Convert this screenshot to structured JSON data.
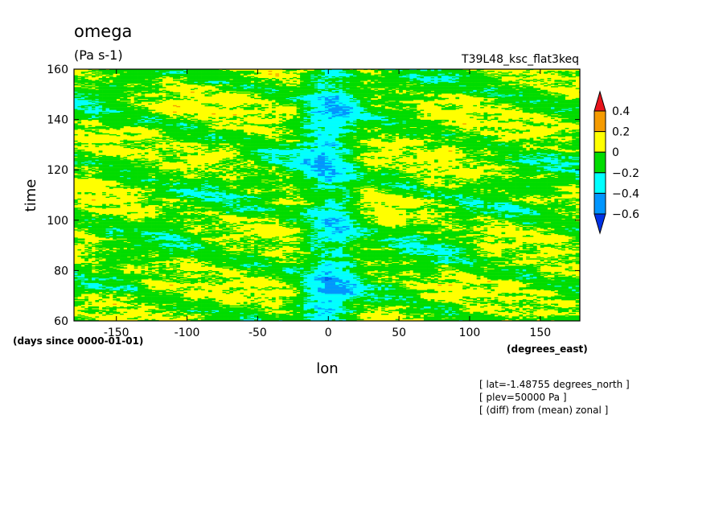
{
  "chart_data": {
    "type": "heatmap",
    "title": "omega",
    "units": "(Pa s-1)",
    "run_label": "T39L48_ksc_flat3keq",
    "xlabel": "lon",
    "x_units": "(degrees_east)",
    "ylabel": "time",
    "y_units": "(days since 0000-01-01)",
    "xlim": [
      -180,
      178
    ],
    "ylim": [
      60,
      160
    ],
    "x_ticks": [
      -150,
      -100,
      -50,
      0,
      50,
      100,
      150
    ],
    "y_ticks": [
      60,
      80,
      100,
      120,
      140,
      160
    ],
    "colorbar": {
      "levels": [
        0.4,
        0.2,
        0,
        -0.2,
        -0.4,
        -0.6
      ],
      "colors": [
        "#e8141c",
        "#f59b00",
        "#ffff00",
        "#00dc00",
        "#00ffff",
        "#0096ff",
        "#0032e6"
      ]
    },
    "notes": [
      "[ lat=-1.48755 degrees_north ]",
      "[ plev=50000 Pa ]",
      "[ (diff) from (mean) zonal ]"
    ]
  }
}
